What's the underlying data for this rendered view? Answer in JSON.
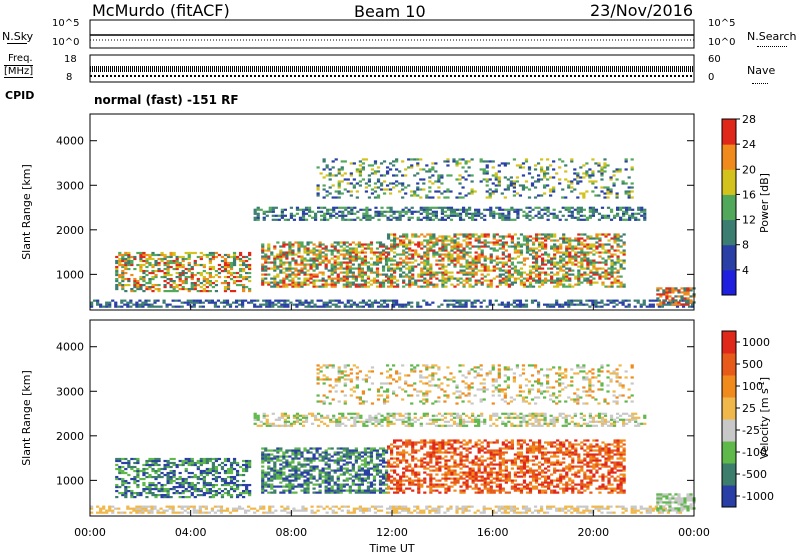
{
  "header": {
    "station": "McMurdo (fitACF)",
    "beam": "Beam 10",
    "date": "23/Nov/2016"
  },
  "top_panels": {
    "nsky_label": "N.Sky",
    "nsky_max": "10^5",
    "nsky_min": "10^0",
    "nsearch_label": "N.Search",
    "nsearch_max": "10^5",
    "nsearch_min": "10^0",
    "freq_label_1": "Freq.",
    "freq_label_2": "[MHz]",
    "freq_max": "18",
    "freq_min": "8",
    "nave_label": "Nave",
    "nave_max": "60",
    "nave_min": "0",
    "cpid_label": "CPID",
    "cpid_value": "normal (fast) -151 RF"
  },
  "chart_data": [
    {
      "type": "heatmap",
      "name": "power",
      "ylabel": "Slant Range [km]",
      "yticks": [
        "1000",
        "2000",
        "3000",
        "4000"
      ],
      "ylim": [
        200,
        4600
      ],
      "colorbar_label": "Power [dB]",
      "colorbar_ticks": [
        "4",
        "8",
        "12",
        "16",
        "20",
        "24",
        "28"
      ],
      "colors": [
        "#1f1fe0",
        "#2a3fa6",
        "#3c7d72",
        "#52a85a",
        "#d4c21c",
        "#f08a1c",
        "#e0281a"
      ]
    },
    {
      "type": "heatmap",
      "name": "velocity",
      "ylabel": "Slant Range [km]",
      "yticks": [
        "1000",
        "2000",
        "3000",
        "4000"
      ],
      "ylim": [
        200,
        4600
      ],
      "xlabel": "Time UT",
      "xticks": [
        "00:00",
        "04:00",
        "08:00",
        "12:00",
        "16:00",
        "20:00",
        "00:00"
      ],
      "colorbar_label": "Velocity [m s",
      "colorbar_label_sup": "-1",
      "colorbar_label_end": "]",
      "colorbar_ticks": [
        "1000",
        "500",
        "100",
        "25",
        "-25",
        "-100",
        "-500",
        "-1000"
      ],
      "colors": [
        "#2a3fa6",
        "#3d7d6c",
        "#5fb84a",
        "#c8c8c8",
        "#f0b84a",
        "#f08a1c",
        "#e85a1a",
        "#e0281a"
      ]
    }
  ]
}
